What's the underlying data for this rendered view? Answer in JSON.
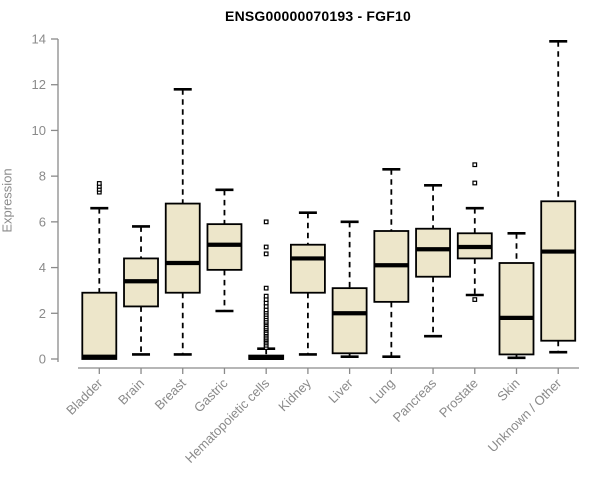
{
  "page": {
    "background": "#ffffff"
  },
  "chart_data": {
    "type": "boxplot",
    "title": "ENSG00000070193 - FGF10",
    "ylabel": "Expression",
    "xlabel": "",
    "ylim": [
      -0.4,
      14.5
    ],
    "yticks": [
      0,
      2,
      4,
      6,
      8,
      10,
      12,
      14
    ],
    "grid": false,
    "legend": "none",
    "categories": [
      "Bladder",
      "Brain",
      "Breast",
      "Gastric",
      "Hematopoietic cells",
      "Kidney",
      "Liver",
      "Lung",
      "Pancreas",
      "Prostate",
      "Skin",
      "Unknown / Other"
    ],
    "series": [
      {
        "category": "Bladder",
        "whisker_low": 0.0,
        "q1": 0.0,
        "median": 0.1,
        "q3": 2.9,
        "whisker_high": 6.6,
        "outliers": [
          7.3,
          7.42,
          7.55,
          7.68
        ]
      },
      {
        "category": "Brain",
        "whisker_low": 0.2,
        "q1": 2.3,
        "median": 3.4,
        "q3": 4.4,
        "whisker_high": 5.8,
        "outliers": []
      },
      {
        "category": "Breast",
        "whisker_low": 0.2,
        "q1": 2.9,
        "median": 4.2,
        "q3": 6.8,
        "whisker_high": 11.8,
        "outliers": []
      },
      {
        "category": "Gastric",
        "whisker_low": 2.1,
        "q1": 3.9,
        "median": 5.0,
        "q3": 5.9,
        "whisker_high": 7.4,
        "outliers": []
      },
      {
        "category": "Hematopoietic cells",
        "whisker_low": 0.0,
        "q1": 0.0,
        "median": 0.05,
        "q3": 0.15,
        "whisker_high": 0.45,
        "outliers": [
          0.5,
          0.6,
          0.7,
          0.78,
          0.85,
          0.92,
          1.0,
          1.08,
          1.15,
          1.25,
          1.32,
          1.4,
          1.5,
          1.58,
          1.65,
          1.75,
          1.85,
          1.95,
          2.05,
          2.15,
          2.3,
          2.45,
          2.6,
          2.75,
          3.1,
          4.6,
          4.9,
          6.0
        ]
      },
      {
        "category": "Kidney",
        "whisker_low": 0.2,
        "q1": 2.9,
        "median": 4.4,
        "q3": 5.0,
        "whisker_high": 6.4,
        "outliers": []
      },
      {
        "category": "Liver",
        "whisker_low": 0.1,
        "q1": 0.25,
        "median": 2.0,
        "q3": 3.1,
        "whisker_high": 6.0,
        "outliers": []
      },
      {
        "category": "Lung",
        "whisker_low": 0.1,
        "q1": 2.5,
        "median": 4.1,
        "q3": 5.6,
        "whisker_high": 8.3,
        "outliers": []
      },
      {
        "category": "Pancreas",
        "whisker_low": 1.0,
        "q1": 3.6,
        "median": 4.8,
        "q3": 5.7,
        "whisker_high": 7.6,
        "outliers": []
      },
      {
        "category": "Prostate",
        "whisker_low": 2.8,
        "q1": 4.4,
        "median": 4.9,
        "q3": 5.5,
        "whisker_high": 6.6,
        "outliers": [
          8.5,
          7.7,
          2.6
        ]
      },
      {
        "category": "Skin",
        "whisker_low": 0.05,
        "q1": 0.2,
        "median": 1.8,
        "q3": 4.2,
        "whisker_high": 5.5,
        "outliers": []
      },
      {
        "category": "Unknown / Other",
        "whisker_low": 0.3,
        "q1": 0.8,
        "median": 4.7,
        "q3": 6.9,
        "whisker_high": 13.9,
        "outliers": []
      }
    ],
    "colors": {
      "box_fill": "#EDE6CA",
      "box_stroke": "#000000",
      "median": "#000000",
      "axis": "#8a8a8a",
      "tick_label": "#8a8a8a",
      "title": "#000000",
      "background": "#ffffff"
    }
  }
}
